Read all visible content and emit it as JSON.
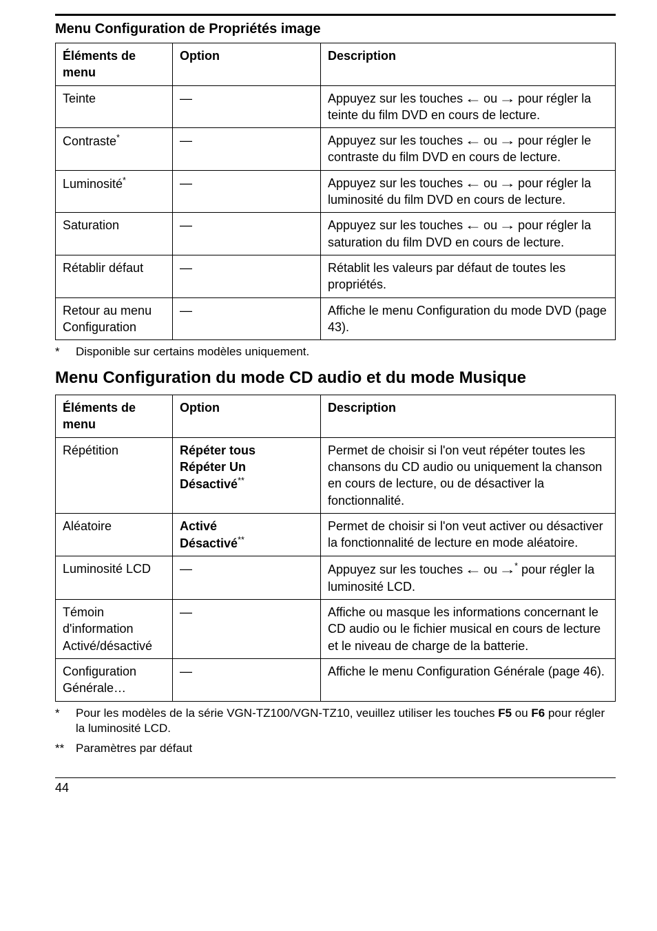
{
  "page_number": "44",
  "section1": {
    "title": "Menu Configuration de Propriétés image",
    "headers": [
      "Éléments de menu",
      "Option",
      "Description"
    ],
    "rows": [
      {
        "item": "Teinte",
        "item_sup": "",
        "option": "—",
        "desc_pre": "Appuyez sur les touches ",
        "desc_mid": " ou ",
        "desc_post": " pour régler la teinte du film DVD en cours de lecture.",
        "has_arrows": true
      },
      {
        "item": "Contraste",
        "item_sup": "*",
        "option": "—",
        "desc_pre": "Appuyez sur les touches ",
        "desc_mid": " ou ",
        "desc_post": " pour régler le contraste du film DVD en cours de lecture.",
        "has_arrows": true
      },
      {
        "item": "Luminosité",
        "item_sup": "*",
        "option": "—",
        "desc_pre": "Appuyez sur les touches ",
        "desc_mid": " ou ",
        "desc_post": " pour régler la luminosité du film DVD en cours de lecture.",
        "has_arrows": true
      },
      {
        "item": "Saturation",
        "item_sup": "",
        "option": "—",
        "desc_pre": "Appuyez sur les touches ",
        "desc_mid": " ou ",
        "desc_post": " pour régler la saturation du film DVD en cours de lecture.",
        "has_arrows": true
      },
      {
        "item": "Rétablir défaut",
        "item_sup": "",
        "option": "—",
        "desc_pre": "Rétablit les valeurs par défaut de toutes les propriétés.",
        "desc_mid": "",
        "desc_post": "",
        "has_arrows": false
      },
      {
        "item": "Retour au menu Configuration",
        "item_sup": "",
        "option": "—",
        "desc_pre": "Affiche le menu Configuration du mode DVD (page 43).",
        "desc_mid": "",
        "desc_post": "",
        "has_arrows": false
      }
    ],
    "footnote": "Disponible sur certains modèles uniquement.",
    "footnote_mark": "*"
  },
  "section2": {
    "title": "Menu Configuration du mode CD audio et du mode Musique",
    "headers": [
      "Éléments de menu",
      "Option",
      "Description"
    ],
    "rows": [
      {
        "item": "Répétition",
        "item_sup": "",
        "options": [
          {
            "text": "Répéter tous",
            "sup": ""
          },
          {
            "text": "Répéter Un",
            "sup": ""
          },
          {
            "text": "Désactivé",
            "sup": "**"
          }
        ],
        "desc_pre": "Permet de choisir si l'on veut répéter toutes les chansons du CD audio ou uniquement la chanson en cours de lecture, ou de désactiver la fonctionnalité.",
        "desc_mid": "",
        "desc_post": "",
        "has_arrows": false,
        "arrow_sup": ""
      },
      {
        "item": "Aléatoire",
        "item_sup": "",
        "options": [
          {
            "text": "Activé",
            "sup": ""
          },
          {
            "text": "Désactivé",
            "sup": "**"
          }
        ],
        "desc_pre": "Permet de choisir si l'on veut activer ou désactiver la fonctionnalité de lecture en mode aléatoire.",
        "desc_mid": "",
        "desc_post": "",
        "has_arrows": false,
        "arrow_sup": ""
      },
      {
        "item": "Luminosité LCD",
        "item_sup": "",
        "options": [
          {
            "text": "—",
            "sup": ""
          }
        ],
        "desc_pre": "Appuyez sur les touches ",
        "desc_mid": " ou ",
        "desc_post": " pour régler la luminosité LCD.",
        "has_arrows": true,
        "arrow_sup": "*"
      },
      {
        "item": "Témoin d'information Activé/désactivé",
        "item_sup": "",
        "options": [
          {
            "text": "—",
            "sup": ""
          }
        ],
        "desc_pre": "Affiche ou masque les informations concernant le CD audio ou le fichier musical en cours de lecture et le niveau de charge de la batterie.",
        "desc_mid": "",
        "desc_post": "",
        "has_arrows": false,
        "arrow_sup": ""
      },
      {
        "item": "Configuration Générale…",
        "item_sup": "",
        "options": [
          {
            "text": "—",
            "sup": ""
          }
        ],
        "desc_pre": "Affiche le menu Configuration Générale (page 46).",
        "desc_mid": "",
        "desc_post": "",
        "has_arrows": false,
        "arrow_sup": ""
      }
    ],
    "footnote1_mark": "*",
    "footnote1_pre": "Pour les modèles de la série VGN-TZ100/VGN-TZ10, veuillez utiliser les touches ",
    "footnote1_b1": "F5",
    "footnote1_mid": " ou ",
    "footnote1_b2": "F6",
    "footnote1_post": " pour régler la luminosité LCD.",
    "footnote2_mark": "**",
    "footnote2": "Paramètres par défaut"
  },
  "glyphs": {
    "left_arrow": "←",
    "right_arrow": "→"
  }
}
